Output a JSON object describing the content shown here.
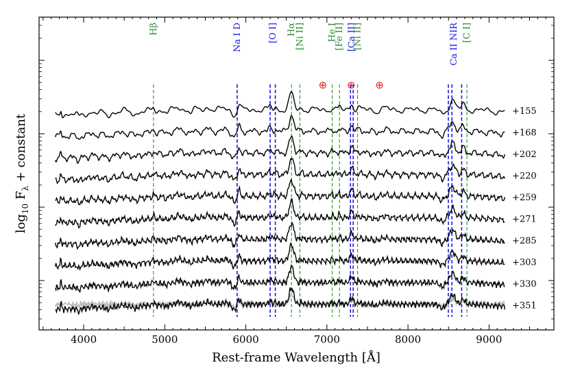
{
  "chart_data": {
    "type": "line",
    "xlabel": "Rest-frame Wavelength [Å]",
    "ylabel": "log₁₀ F_λ + constant",
    "xlim": [
      3450,
      9800
    ],
    "xticks": [
      4000,
      5000,
      6000,
      7000,
      8000,
      9000
    ],
    "x_range": [
      3650,
      9200
    ],
    "colors": {
      "spectrum": "#000000",
      "noise": "#b8b8b8",
      "blue_lines": "#1a1ae6",
      "green_lines": "#2e8b2e",
      "telluric": "#e02020"
    },
    "epochs": [
      {
        "label": "+155",
        "offset": 0
      },
      {
        "label": "+168",
        "offset": 1
      },
      {
        "label": "+202",
        "offset": 2
      },
      {
        "label": "+220",
        "offset": 3
      },
      {
        "label": "+259",
        "offset": 4
      },
      {
        "label": "+271",
        "offset": 5
      },
      {
        "label": "+285",
        "offset": 6
      },
      {
        "label": "+303",
        "offset": 7
      },
      {
        "label": "+330",
        "offset": 8
      },
      {
        "label": "+351",
        "offset": 9
      }
    ],
    "line_markers": [
      {
        "name": "Hβ",
        "wavelengths": [
          4861
        ],
        "color": "green"
      },
      {
        "name": "Na I D",
        "wavelengths": [
          5893
        ],
        "color": "blue"
      },
      {
        "name": "[O I]",
        "wavelengths": [
          6300,
          6364
        ],
        "color": "blue"
      },
      {
        "name": "Hα",
        "wavelengths": [
          6563
        ],
        "color": "green"
      },
      {
        "name": "[Ni II]",
        "wavelengths": [
          6667
        ],
        "color": "green"
      },
      {
        "name": "He I",
        "wavelengths": [
          7065
        ],
        "color": "green"
      },
      {
        "name": "[Fe II]",
        "wavelengths": [
          7155
        ],
        "color": "green"
      },
      {
        "name": "[Ca II]",
        "wavelengths": [
          7291,
          7324
        ],
        "color": "blue"
      },
      {
        "name": "[Ni II]",
        "wavelengths": [
          7378
        ],
        "color": "green"
      },
      {
        "name": "Ca II NIR",
        "wavelengths": [
          8498,
          8542,
          8662
        ],
        "color": "blue"
      },
      {
        "name": "[C I]",
        "wavelengths": [
          8727
        ],
        "color": "green"
      }
    ],
    "telluric_markers": [
      {
        "symbol": "⊕",
        "wavelength": 6950
      },
      {
        "symbol": "⊕",
        "wavelength": 7300
      },
      {
        "symbol": "⊕",
        "wavelength": 7650
      }
    ]
  }
}
